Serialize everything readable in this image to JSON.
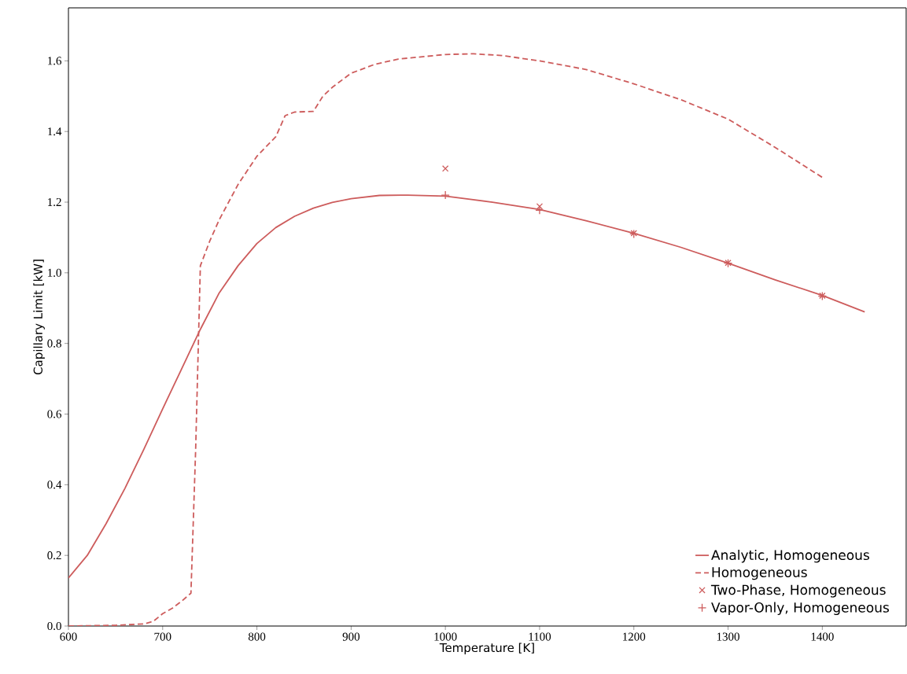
{
  "chart_data": {
    "type": "line",
    "xlabel": "Temperature [K]",
    "ylabel": "Capillary Limit [kW]",
    "xlim": [
      600,
      1489
    ],
    "ylim": [
      0,
      1.75
    ],
    "xticks": [
      600,
      700,
      800,
      900,
      1000,
      1100,
      1200,
      1300,
      1400
    ],
    "yticks": [
      {
        "value": 0,
        "label": "0.0"
      },
      0.2,
      0.4,
      0.6,
      0.8,
      {
        "value": 1,
        "label": "1.0"
      },
      1.2,
      1.4,
      1.6
    ],
    "grid": false,
    "legend": "bottom right",
    "series": [
      {
        "name": "Analytic, Homogeneous",
        "line_style": "solid",
        "marker": "none",
        "color": "#cd5c5c",
        "x": [
          600,
          620,
          640,
          660,
          680,
          700,
          720,
          740,
          760,
          780,
          800,
          820,
          840,
          860,
          880,
          900,
          930,
          960,
          1000,
          1050,
          1100,
          1150,
          1200,
          1250,
          1300,
          1350,
          1400,
          1445
        ],
        "values": [
          0.136,
          0.2,
          0.29,
          0.39,
          0.5,
          0.615,
          0.727,
          0.84,
          0.943,
          1.02,
          1.083,
          1.128,
          1.16,
          1.183,
          1.199,
          1.21,
          1.219,
          1.22,
          1.217,
          1.2,
          1.179,
          1.147,
          1.112,
          1.072,
          1.027,
          0.98,
          0.936,
          0.889
        ]
      },
      {
        "name": "Homogeneous",
        "line_style": "dashed",
        "marker": "none",
        "color": "#cd5c5c",
        "x": [
          600,
          650,
          680,
          690,
          700,
          710,
          720,
          730,
          735,
          740,
          750,
          760,
          780,
          800,
          820,
          830,
          840,
          860,
          870,
          880,
          900,
          925,
          950,
          1000,
          1030,
          1060,
          1100,
          1150,
          1200,
          1250,
          1300,
          1350,
          1400
        ],
        "values": [
          0.0,
          0.002,
          0.006,
          0.013,
          0.035,
          0.05,
          0.07,
          0.093,
          0.5,
          1.02,
          1.09,
          1.15,
          1.25,
          1.33,
          1.385,
          1.445,
          1.455,
          1.457,
          1.5,
          1.525,
          1.565,
          1.59,
          1.605,
          1.618,
          1.62,
          1.615,
          1.6,
          1.575,
          1.535,
          1.49,
          1.435,
          1.355,
          1.27
        ]
      },
      {
        "name": "Two-Phase, Homogeneous",
        "type": "scatter",
        "marker": "cross",
        "color": "#cd5c5c",
        "x": [
          1000,
          1100,
          1200,
          1300,
          1400
        ],
        "values": [
          1.295,
          1.188,
          1.112,
          1.028,
          0.935
        ]
      },
      {
        "name": "Vapor-Only, Homogeneous",
        "type": "scatter",
        "marker": "plus",
        "color": "#cd5c5c",
        "x": [
          1000,
          1100,
          1200,
          1300,
          1400
        ],
        "values": [
          1.22,
          1.177,
          1.11,
          1.027,
          0.934
        ]
      }
    ]
  }
}
